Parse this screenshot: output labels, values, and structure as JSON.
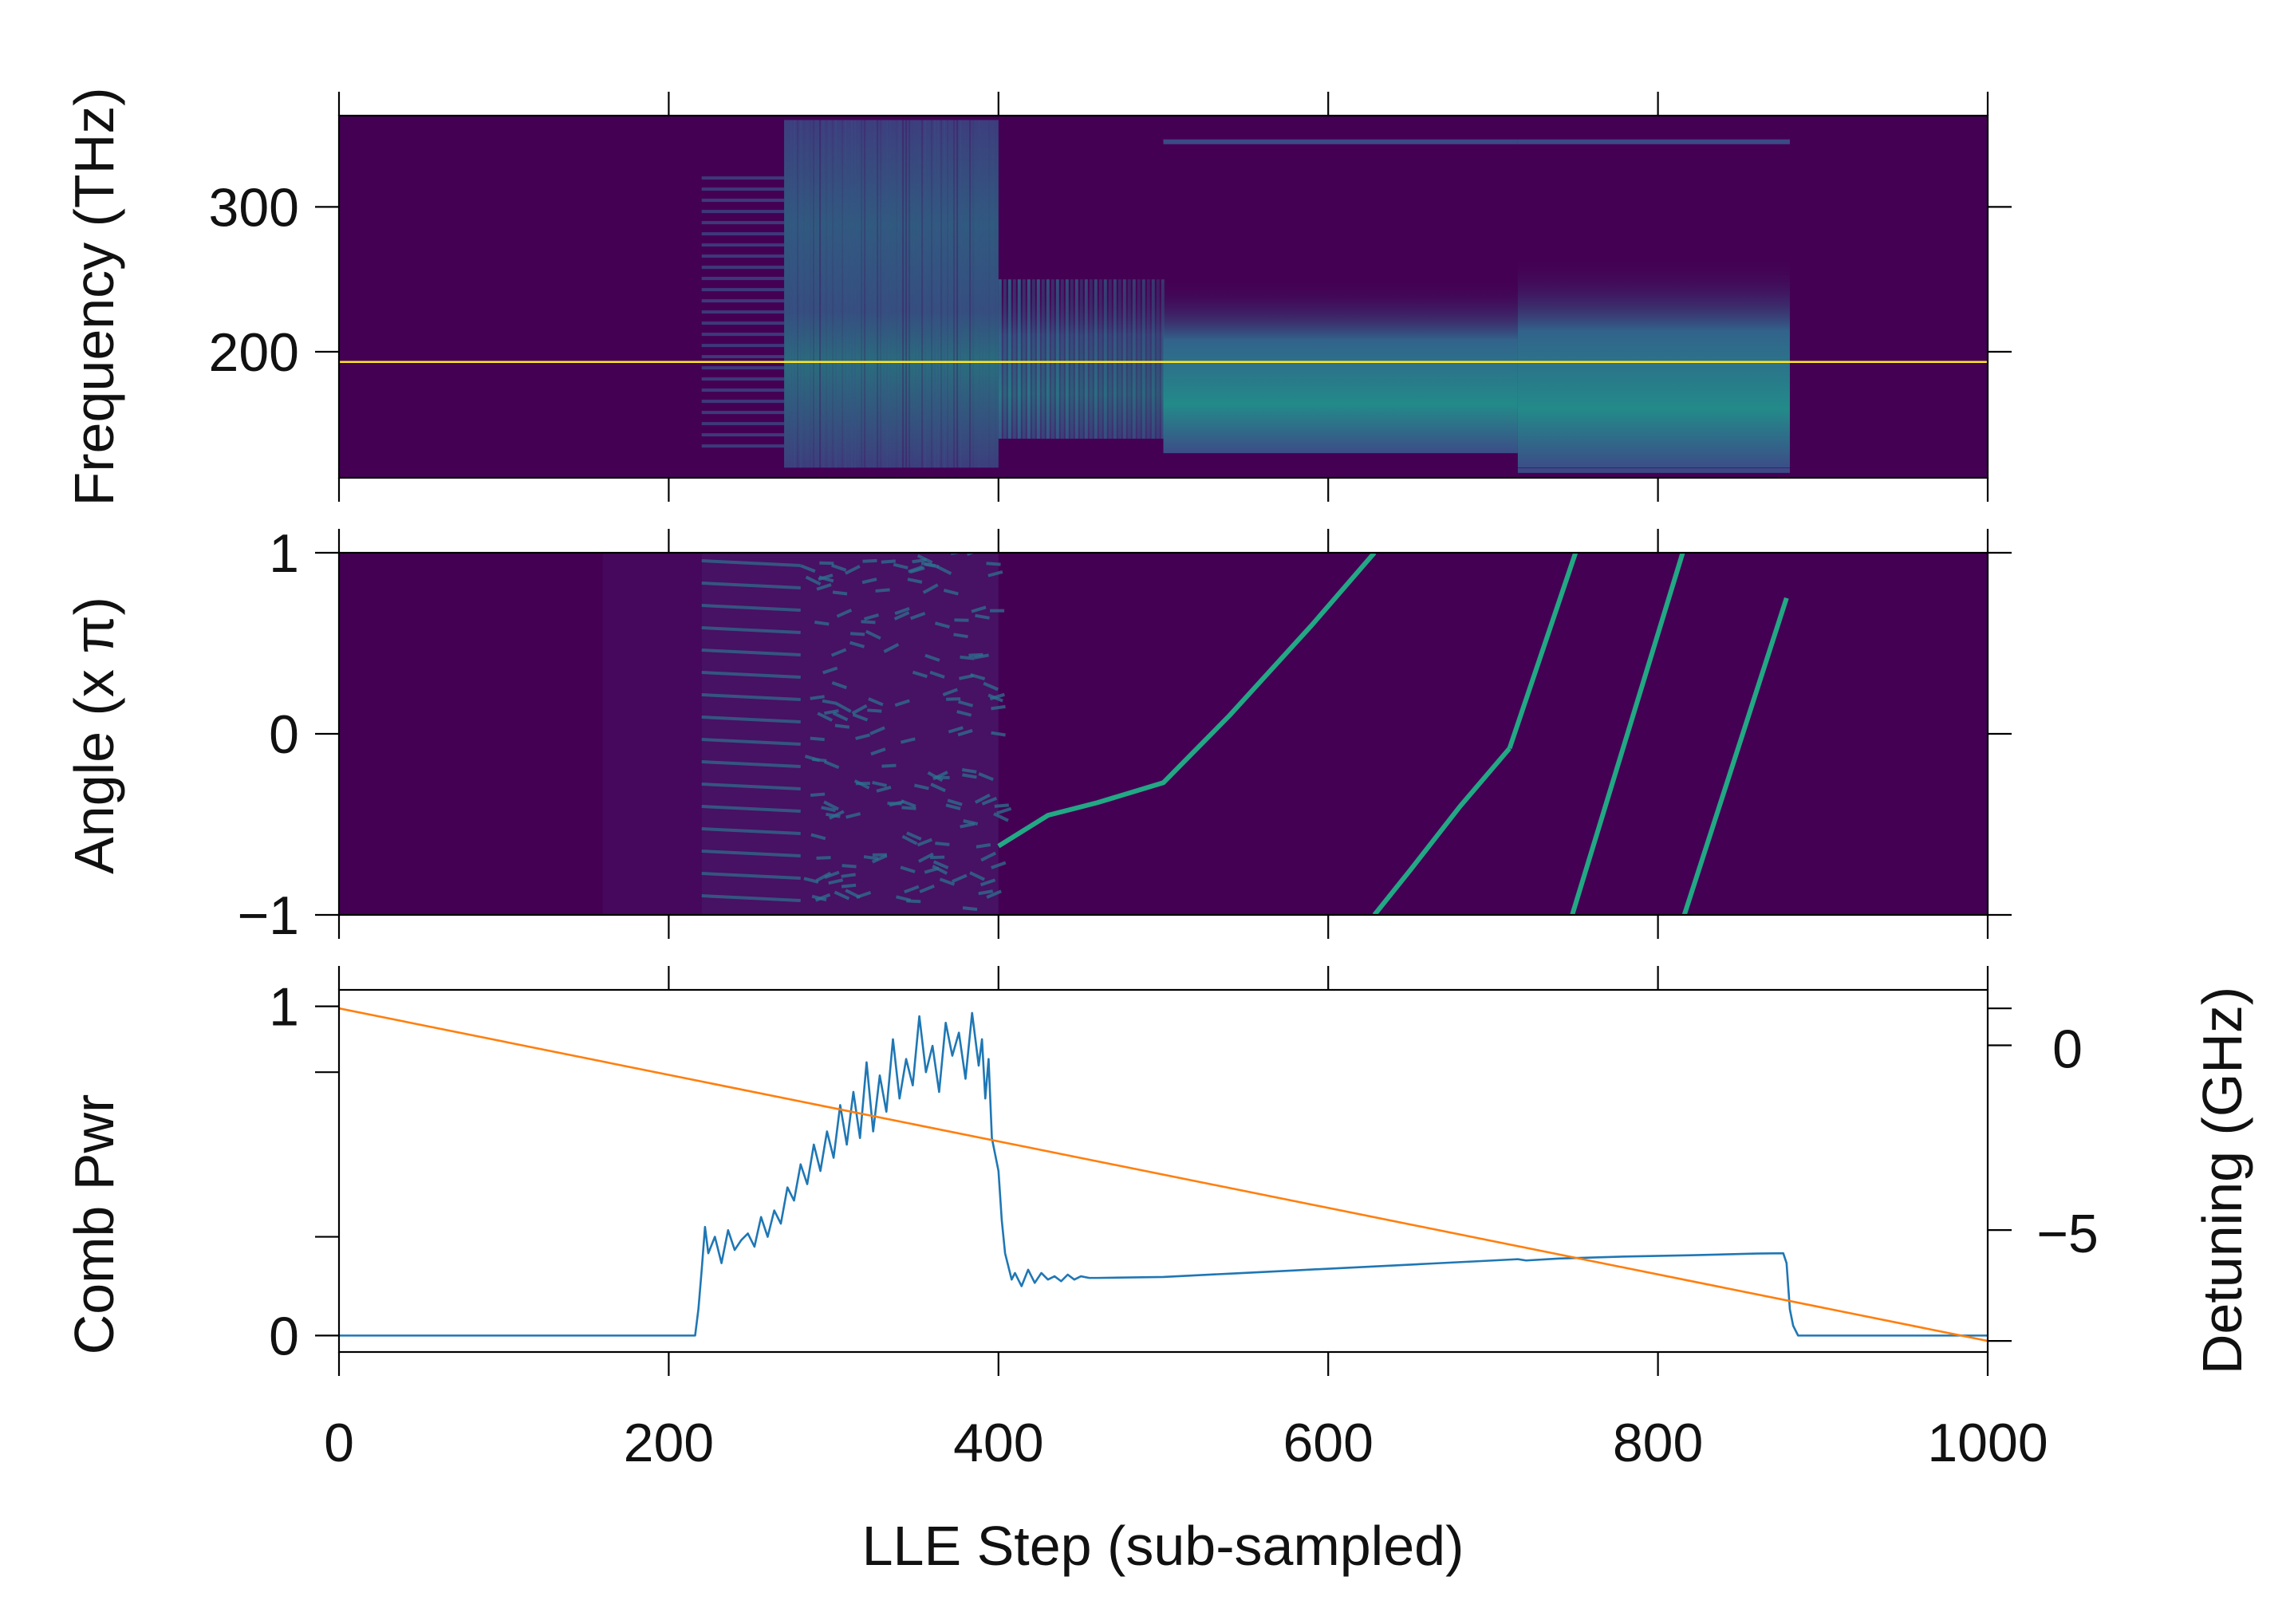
{
  "chart_data": [
    {
      "type": "heatmap",
      "panel": "spectrum",
      "ylabel": "Frequency (THz)",
      "xlim": [
        0,
        1000
      ],
      "ylim": [
        113,
        363
      ],
      "yticks": [
        200,
        300
      ],
      "ytick_labels": [
        "200",
        "300"
      ],
      "colormap": "viridis",
      "pump_line": {
        "y": 193,
        "color": "#fde725"
      },
      "colors": {
        "background": "#440154",
        "mid": "#3b528b",
        "bright": "#21918c",
        "hot": "#35b779"
      },
      "regions": [
        {
          "x": [
            0,
            220
          ],
          "y": [
            113,
            363
          ],
          "level": 0.0
        },
        {
          "x": [
            220,
            270
          ],
          "y": [
            130,
            320
          ],
          "level": 0.25,
          "texture": "comb-lines"
        },
        {
          "x": [
            270,
            400
          ],
          "y": [
            120,
            360
          ],
          "level": 0.55,
          "texture": "noisy"
        },
        {
          "x": [
            400,
            500
          ],
          "y": [
            140,
            250
          ],
          "level": 0.5,
          "texture": "striped"
        },
        {
          "x": [
            500,
            715
          ],
          "y": [
            130,
            250
          ],
          "level": 0.6,
          "texture": "smooth"
        },
        {
          "x": [
            715,
            880
          ],
          "y": [
            120,
            265
          ],
          "level": 0.65,
          "texture": "smooth"
        },
        {
          "x": [
            880,
            1000
          ],
          "y": [
            113,
            363
          ],
          "level": 0.0
        }
      ],
      "faint_lines": [
        {
          "x": [
            500,
            715
          ],
          "y": 345
        },
        {
          "x": [
            715,
            880
          ],
          "y": 345
        },
        {
          "x": [
            715,
            880
          ],
          "y": 118
        }
      ]
    },
    {
      "type": "heatmap",
      "panel": "angle",
      "ylabel": "Angle (x π)",
      "xlim": [
        0,
        1000
      ],
      "ylim": [
        -1,
        1
      ],
      "yticks": [
        -1,
        0,
        1
      ],
      "ytick_labels": [
        "−1",
        "0",
        "1"
      ],
      "colormap": "viridis",
      "colors": {
        "background": "#440154",
        "early": "#46085c",
        "band": "#2c728e",
        "soliton": "#22a884"
      },
      "soliton_traces": [
        {
          "x": [
            400,
            430,
            460,
            500,
            540,
            590,
            628
          ],
          "y": [
            -0.62,
            -0.45,
            -0.38,
            -0.27,
            0.1,
            0.6,
            1.0
          ]
        },
        {
          "x": [
            628,
            650,
            680,
            710
          ],
          "y": [
            -1.0,
            -0.75,
            -0.4,
            -0.08
          ]
        },
        {
          "x": [
            710,
            750
          ],
          "y": [
            -0.08,
            1.0
          ]
        },
        {
          "x": [
            748,
            815
          ],
          "y": [
            -1.0,
            1.0
          ]
        },
        {
          "x": [
            816,
            878
          ],
          "y": [
            -1.0,
            0.75
          ]
        }
      ]
    },
    {
      "type": "line",
      "panel": "comb-power",
      "xlabel": "LLE Step (sub-sampled)",
      "ylabel": "Comb Pwr",
      "y2label": "Detuning (GHz)",
      "xlim": [
        0,
        1000
      ],
      "ylim": [
        -0.05,
        1.05
      ],
      "y2lim": [
        -8.3,
        1.5
      ],
      "xticks": [
        0,
        200,
        400,
        600,
        800,
        1000
      ],
      "xtick_labels": [
        "0",
        "200",
        "400",
        "600",
        "800",
        "1000"
      ],
      "yticks": [
        0,
        1
      ],
      "ytick_labels": [
        "0",
        "1"
      ],
      "y2ticks": [
        -5,
        0
      ],
      "y2tick_labels": [
        "−5",
        "0"
      ],
      "series": [
        {
          "axis": "left",
          "color": "#1f77b4",
          "x": [
            0,
            216,
            218,
            220,
            222,
            224,
            228,
            232,
            236,
            240,
            244,
            248,
            252,
            256,
            260,
            264,
            268,
            272,
            276,
            280,
            284,
            288,
            292,
            296,
            300,
            304,
            308,
            312,
            316,
            320,
            324,
            328,
            332,
            336,
            340,
            344,
            348,
            352,
            356,
            360,
            364,
            368,
            372,
            376,
            380,
            384,
            388,
            390,
            392,
            394,
            396,
            398,
            400,
            402,
            404,
            406,
            408,
            410,
            414,
            418,
            422,
            426,
            430,
            434,
            438,
            442,
            446,
            450,
            455,
            460,
            500,
            540,
            580,
            620,
            660,
            700,
            715,
            720,
            740,
            780,
            820,
            860,
            876,
            878,
            880,
            882,
            885,
            890,
            1000
          ],
          "y": [
            0.0,
            0.0,
            0.08,
            0.2,
            0.33,
            0.25,
            0.3,
            0.22,
            0.32,
            0.26,
            0.29,
            0.31,
            0.27,
            0.36,
            0.3,
            0.38,
            0.34,
            0.45,
            0.41,
            0.52,
            0.46,
            0.58,
            0.5,
            0.62,
            0.54,
            0.7,
            0.58,
            0.74,
            0.6,
            0.83,
            0.62,
            0.79,
            0.68,
            0.9,
            0.72,
            0.84,
            0.76,
            0.97,
            0.8,
            0.88,
            0.74,
            0.95,
            0.85,
            0.92,
            0.78,
            0.98,
            0.82,
            0.9,
            0.72,
            0.84,
            0.6,
            0.55,
            0.5,
            0.35,
            0.25,
            0.21,
            0.17,
            0.19,
            0.15,
            0.2,
            0.16,
            0.19,
            0.17,
            0.18,
            0.165,
            0.185,
            0.17,
            0.18,
            0.175,
            0.175,
            0.178,
            0.188,
            0.198,
            0.208,
            0.218,
            0.228,
            0.232,
            0.228,
            0.234,
            0.24,
            0.244,
            0.249,
            0.25,
            0.22,
            0.08,
            0.03,
            0.0,
            0.0,
            0.0
          ]
        },
        {
          "axis": "right",
          "color": "#ff7f0e",
          "x": [
            0,
            1000
          ],
          "y": [
            1.0,
            -8.0
          ]
        }
      ]
    }
  ]
}
